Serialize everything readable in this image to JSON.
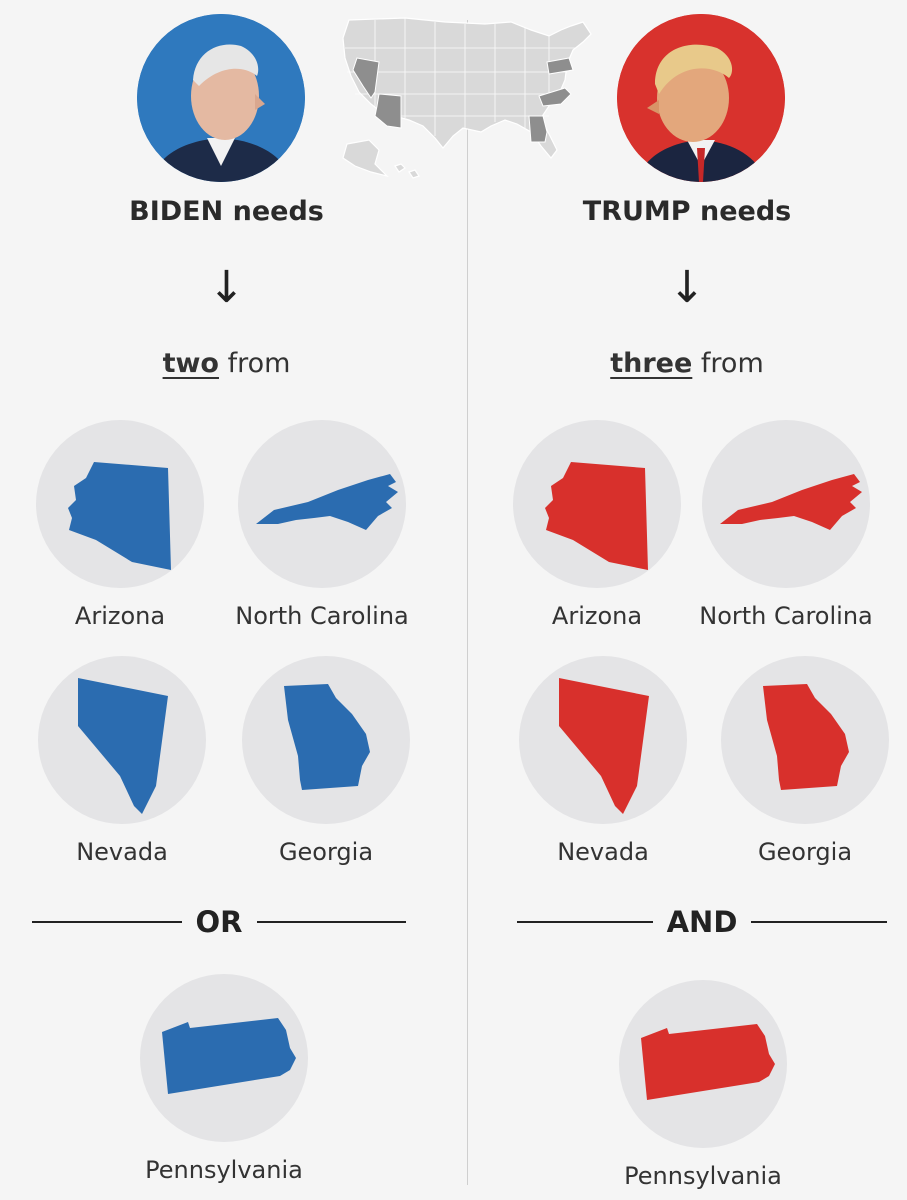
{
  "colors": {
    "biden": "#2b6cb0",
    "trump": "#d8302c",
    "biden_ring": "#2f79be",
    "trump_ring": "#d8322d",
    "disc": "#e4e4e6",
    "map_base": "#d9d9d9",
    "map_battleground": "#8e8e8e"
  },
  "left": {
    "headline": "BIDEN needs",
    "arrow": "↓",
    "quantity": "two",
    "from": "from",
    "states": [
      {
        "name": "Arizona",
        "shape": "arizona-map-icon"
      },
      {
        "name": "North Carolina",
        "shape": "north-carolina-map-icon"
      },
      {
        "name": "Nevada",
        "shape": "nevada-map-icon"
      },
      {
        "name": "Georgia",
        "shape": "georgia-map-icon"
      }
    ],
    "separator": "OR",
    "final_state": {
      "name": "Pennsylvania",
      "shape": "pennsylvania-map-icon"
    }
  },
  "right": {
    "headline": "TRUMP needs",
    "arrow": "↓",
    "quantity": "three",
    "from": "from",
    "states": [
      {
        "name": "Arizona",
        "shape": "arizona-map-icon"
      },
      {
        "name": "North Carolina",
        "shape": "north-carolina-map-icon"
      },
      {
        "name": "Nevada",
        "shape": "nevada-map-icon"
      },
      {
        "name": "Georgia",
        "shape": "georgia-map-icon"
      }
    ],
    "separator": "AND",
    "final_state": {
      "name": "Pennsylvania",
      "shape": "pennsylvania-map-icon"
    }
  }
}
